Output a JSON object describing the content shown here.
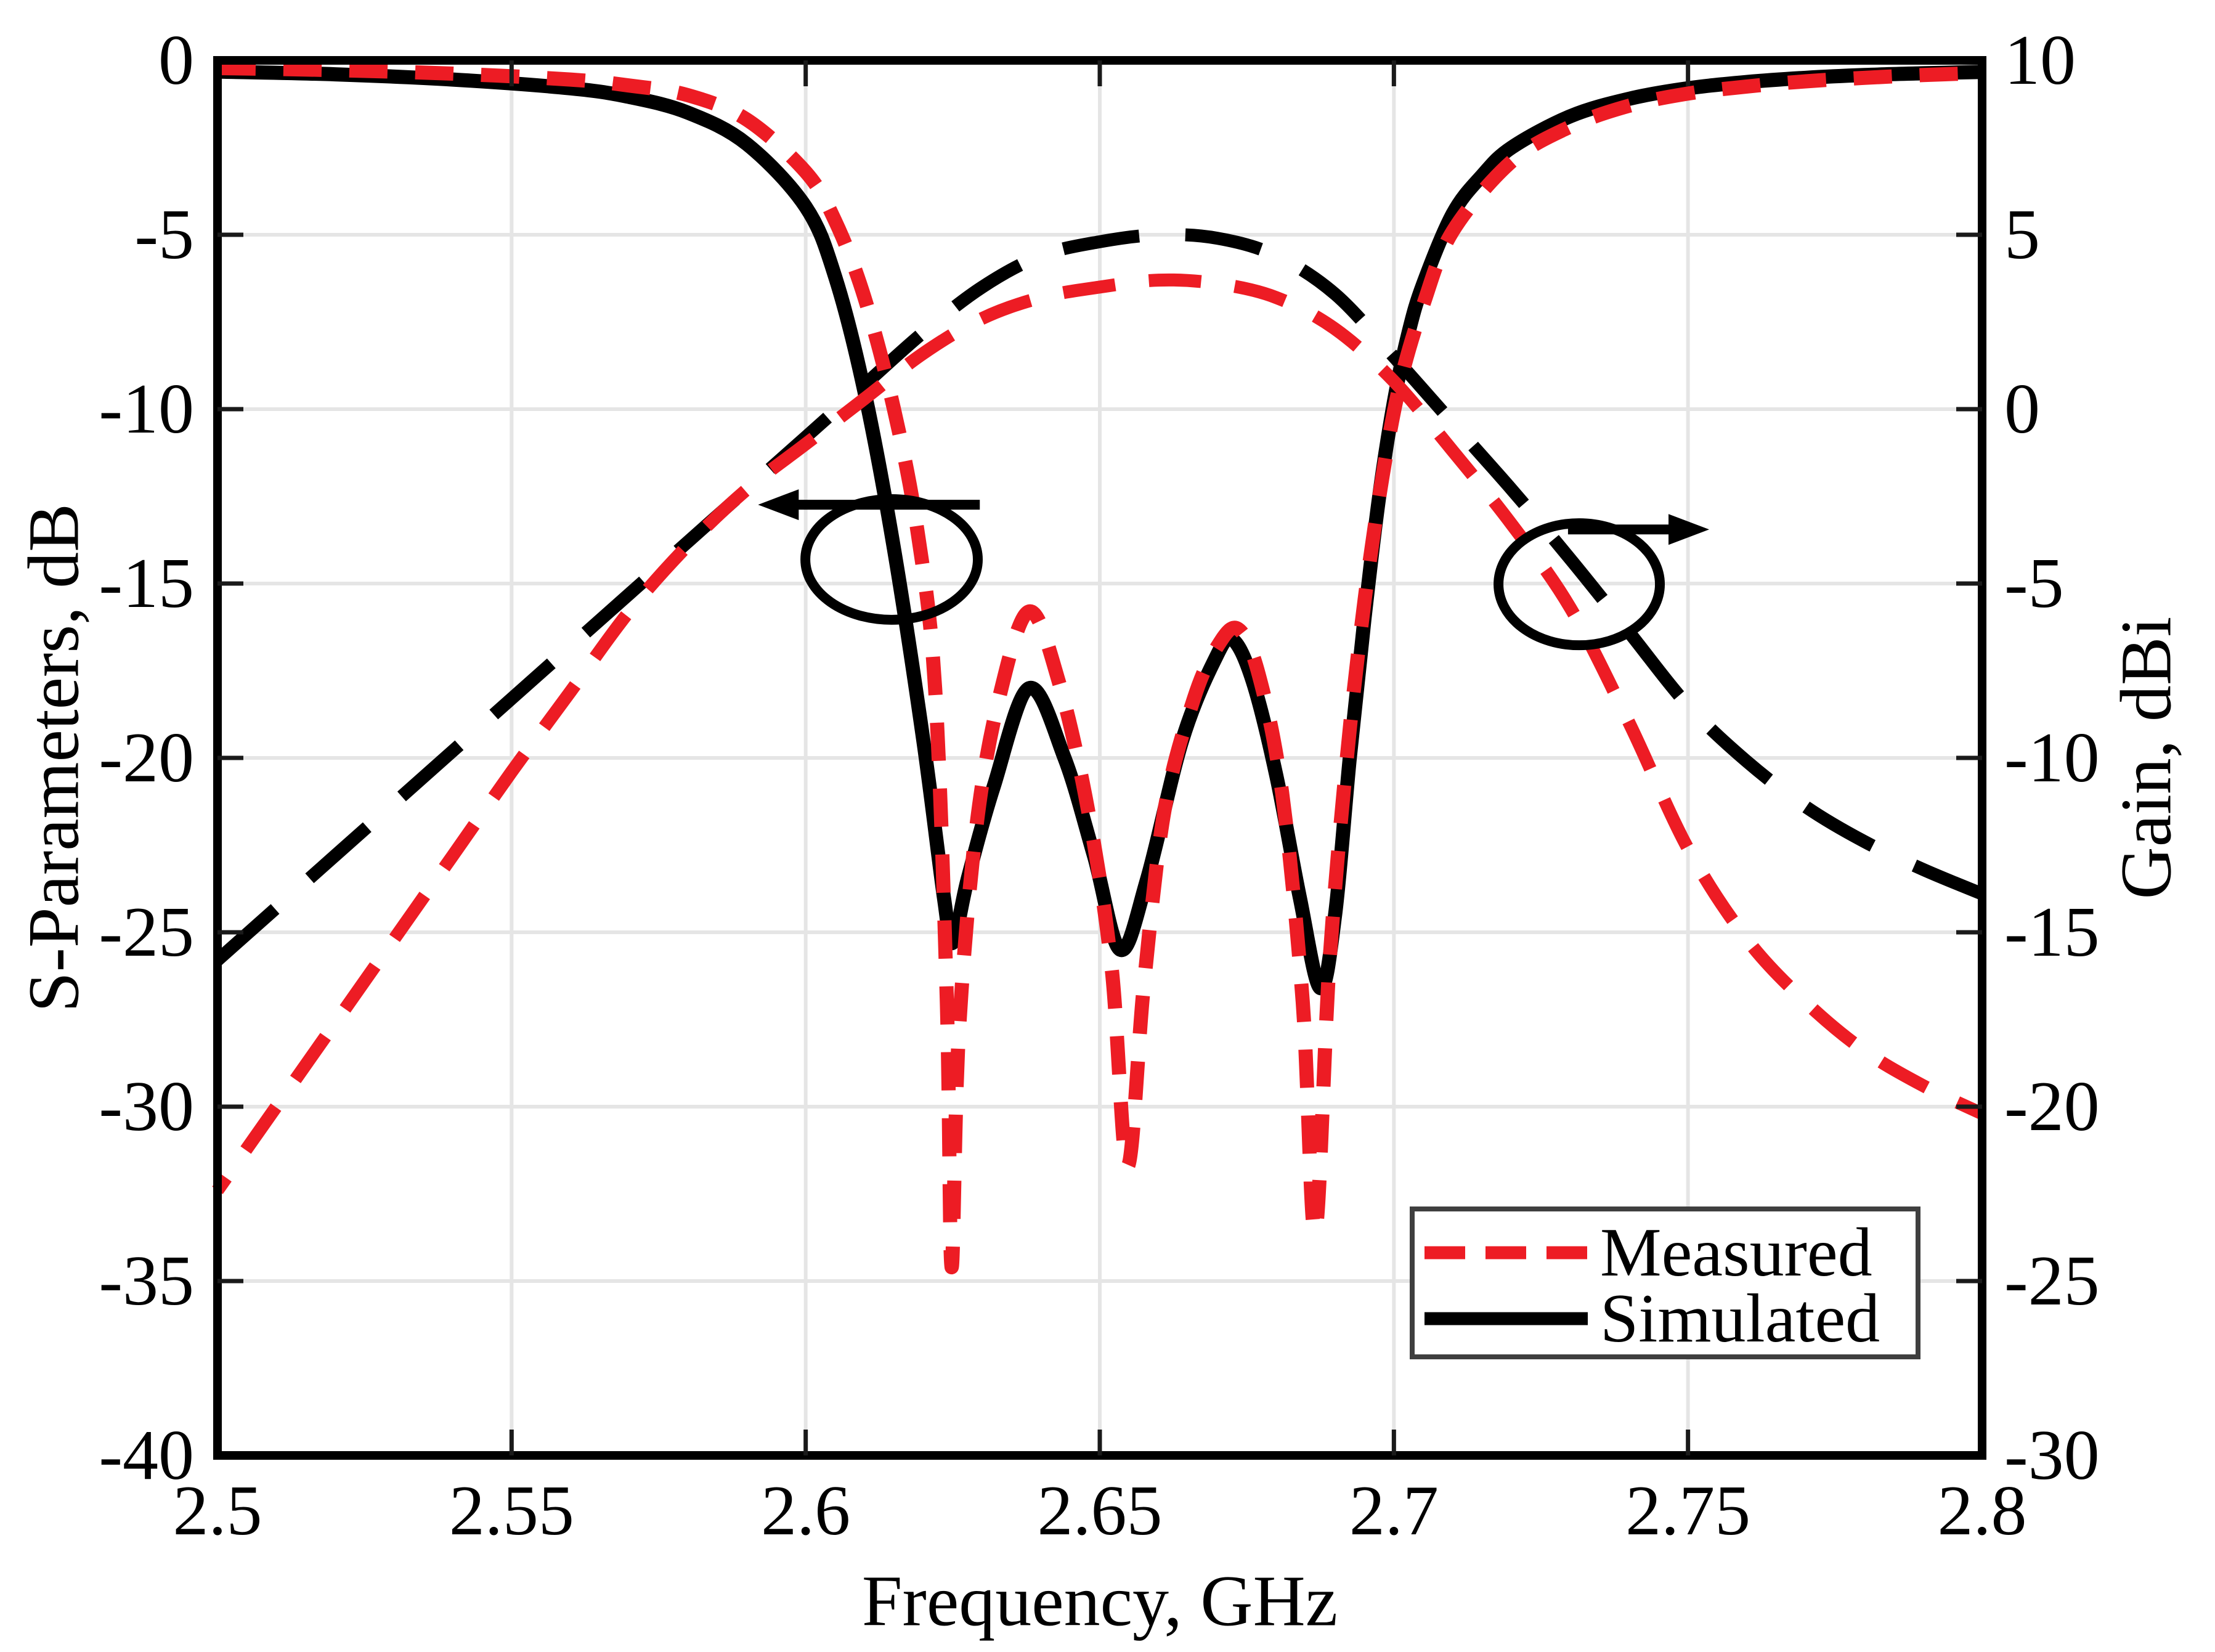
{
  "chart_data": {
    "type": "line",
    "title": "",
    "xlabel": "Frequency, GHz",
    "ylabel_left": "S-Parameters, dB",
    "ylabel_right": "Gain, dBi",
    "xlim": [
      2.5,
      2.8
    ],
    "ylim_left": [
      -40,
      0
    ],
    "ylim_right": [
      -30,
      10
    ],
    "grid": true,
    "xticks": [
      2.5,
      2.55,
      2.6,
      2.65,
      2.7,
      2.75,
      2.8
    ],
    "xtick_labels": [
      "2.5",
      "2.55",
      "2.6",
      "2.65",
      "2.7",
      "2.75",
      "2.8"
    ],
    "yticks_left": [
      0,
      -5,
      -10,
      -15,
      -20,
      -25,
      -30,
      -35,
      -40
    ],
    "ytick_labels_left": [
      "0",
      "-5",
      "-10",
      "-15",
      "-20",
      "-25",
      "-30",
      "-35",
      "-40"
    ],
    "yticks_right": [
      10,
      5,
      0,
      -5,
      -10,
      -15,
      -20,
      -25,
      -30
    ],
    "ytick_labels_right": [
      "10",
      "5",
      "0",
      "-5",
      "-10",
      "-15",
      "-20",
      "-25",
      "-30"
    ],
    "colors": {
      "measured": "#ED1C24",
      "simulated": "#000000",
      "grid": "#E5E5E5",
      "tick": "#1A1A1A",
      "legend_border": "#3F3F3F"
    },
    "legend": {
      "position": "lower-right",
      "entries": [
        {
          "label": "Measured",
          "color": "#ED1C24",
          "style": "dashed"
        },
        {
          "label": "Simulated",
          "color": "#000000",
          "style": "solid"
        }
      ]
    },
    "series": [
      {
        "name": "s-parameters-simulated",
        "legend": "Simulated",
        "axis": "left",
        "color": "#000000",
        "style": "solid",
        "width": 23,
        "dash": null,
        "points": [
          [
            2.5,
            -0.32
          ],
          [
            2.52,
            -0.4
          ],
          [
            2.54,
            -0.55
          ],
          [
            2.56,
            -0.8
          ],
          [
            2.57,
            -1.05
          ],
          [
            2.58,
            -1.5
          ],
          [
            2.59,
            -2.4
          ],
          [
            2.6,
            -4.2
          ],
          [
            2.605,
            -6.2
          ],
          [
            2.61,
            -9.5
          ],
          [
            2.615,
            -14.0
          ],
          [
            2.62,
            -19.5
          ],
          [
            2.6235,
            -24.0
          ],
          [
            2.625,
            -25.3
          ],
          [
            2.6275,
            -23.5
          ],
          [
            2.632,
            -20.8
          ],
          [
            2.638,
            -18.0
          ],
          [
            2.644,
            -20.0
          ],
          [
            2.649,
            -22.8
          ],
          [
            2.6535,
            -25.5
          ],
          [
            2.658,
            -23.5
          ],
          [
            2.664,
            -19.5
          ],
          [
            2.6695,
            -17.2
          ],
          [
            2.6725,
            -16.6
          ],
          [
            2.676,
            -17.8
          ],
          [
            2.68,
            -20.5
          ],
          [
            2.684,
            -24.0
          ],
          [
            2.6875,
            -26.6
          ],
          [
            2.69,
            -24.5
          ],
          [
            2.6925,
            -20.0
          ],
          [
            2.695,
            -16.0
          ],
          [
            2.6975,
            -12.5
          ],
          [
            2.7,
            -9.8
          ],
          [
            2.7025,
            -7.8
          ],
          [
            2.705,
            -6.4
          ],
          [
            2.71,
            -4.4
          ],
          [
            2.715,
            -3.3
          ],
          [
            2.72,
            -2.5
          ],
          [
            2.73,
            -1.6
          ],
          [
            2.74,
            -1.1
          ],
          [
            2.75,
            -0.8
          ],
          [
            2.76,
            -0.62
          ],
          [
            2.77,
            -0.5
          ],
          [
            2.78,
            -0.42
          ],
          [
            2.79,
            -0.37
          ],
          [
            2.8,
            -0.33
          ]
        ]
      },
      {
        "name": "s-parameters-measured",
        "legend": "Measured",
        "axis": "left",
        "color": "#ED1C24",
        "style": "dashed",
        "width": 23,
        "dash": [
          62,
          45
        ],
        "points": [
          [
            2.5,
            -0.22
          ],
          [
            2.52,
            -0.28
          ],
          [
            2.54,
            -0.38
          ],
          [
            2.56,
            -0.55
          ],
          [
            2.57,
            -0.72
          ],
          [
            2.58,
            -1.0
          ],
          [
            2.59,
            -1.7
          ],
          [
            2.6,
            -3.2
          ],
          [
            2.605,
            -4.6
          ],
          [
            2.61,
            -6.8
          ],
          [
            2.615,
            -10.0
          ],
          [
            2.619,
            -13.5
          ],
          [
            2.622,
            -18.0
          ],
          [
            2.624,
            -27.0
          ],
          [
            2.6248,
            -34.6
          ],
          [
            2.626,
            -28.0
          ],
          [
            2.629,
            -22.0
          ],
          [
            2.633,
            -18.2
          ],
          [
            2.638,
            -15.8
          ],
          [
            2.643,
            -17.8
          ],
          [
            2.648,
            -21.5
          ],
          [
            2.652,
            -26.0
          ],
          [
            2.6547,
            -31.7
          ],
          [
            2.6575,
            -26.5
          ],
          [
            2.661,
            -21.5
          ],
          [
            2.666,
            -18.3
          ],
          [
            2.67,
            -16.8
          ],
          [
            2.6735,
            -16.3
          ],
          [
            2.677,
            -17.6
          ],
          [
            2.681,
            -21.0
          ],
          [
            2.6845,
            -27.0
          ],
          [
            2.6866,
            -33.6
          ],
          [
            2.689,
            -26.0
          ],
          [
            2.692,
            -20.0
          ],
          [
            2.695,
            -15.5
          ],
          [
            2.698,
            -12.0
          ],
          [
            2.701,
            -9.3
          ],
          [
            2.705,
            -7.0
          ],
          [
            2.71,
            -4.9
          ],
          [
            2.72,
            -2.9
          ],
          [
            2.73,
            -1.9
          ],
          [
            2.74,
            -1.3
          ],
          [
            2.75,
            -0.95
          ],
          [
            2.76,
            -0.75
          ],
          [
            2.77,
            -0.6
          ],
          [
            2.78,
            -0.5
          ],
          [
            2.79,
            -0.42
          ],
          [
            2.8,
            -0.36
          ]
        ]
      },
      {
        "name": "gain-simulated",
        "legend": "Simulated",
        "axis": "right",
        "color": "#000000",
        "style": "dashed",
        "width": 21,
        "dash": [
          125,
          75
        ],
        "points": [
          [
            2.5,
            -15.8
          ],
          [
            2.51,
            -14.3
          ],
          [
            2.52,
            -12.8
          ],
          [
            2.53,
            -11.3
          ],
          [
            2.54,
            -9.8
          ],
          [
            2.55,
            -8.3
          ],
          [
            2.56,
            -6.8
          ],
          [
            2.57,
            -5.3
          ],
          [
            2.58,
            -3.8
          ],
          [
            2.59,
            -2.3
          ],
          [
            2.6,
            -0.8
          ],
          [
            2.61,
            0.7
          ],
          [
            2.62,
            2.2
          ],
          [
            2.63,
            3.5
          ],
          [
            2.64,
            4.4
          ],
          [
            2.65,
            4.8
          ],
          [
            2.66,
            5.0
          ],
          [
            2.67,
            4.9
          ],
          [
            2.68,
            4.4
          ],
          [
            2.69,
            3.3
          ],
          [
            2.7,
            1.5
          ],
          [
            2.71,
            -0.4
          ],
          [
            2.72,
            -2.3
          ],
          [
            2.73,
            -4.3
          ],
          [
            2.74,
            -6.4
          ],
          [
            2.75,
            -8.5
          ],
          [
            2.76,
            -10.1
          ],
          [
            2.77,
            -11.4
          ],
          [
            2.78,
            -12.4
          ],
          [
            2.79,
            -13.2
          ],
          [
            2.8,
            -13.9
          ]
        ]
      },
      {
        "name": "gain-measured",
        "legend": "Measured",
        "axis": "right",
        "color": "#ED1C24",
        "style": "dashed",
        "width": 21,
        "dash": [
          85,
          55
        ],
        "points": [
          [
            2.5,
            -22.4
          ],
          [
            2.51,
            -20.0
          ],
          [
            2.52,
            -17.6
          ],
          [
            2.53,
            -15.2
          ],
          [
            2.54,
            -12.8
          ],
          [
            2.55,
            -10.4
          ],
          [
            2.56,
            -8.1
          ],
          [
            2.57,
            -5.8
          ],
          [
            2.58,
            -3.9
          ],
          [
            2.59,
            -2.3
          ],
          [
            2.6,
            -1.0
          ],
          [
            2.61,
            0.3
          ],
          [
            2.62,
            1.6
          ],
          [
            2.63,
            2.6
          ],
          [
            2.64,
            3.2
          ],
          [
            2.65,
            3.5
          ],
          [
            2.66,
            3.7
          ],
          [
            2.67,
            3.6
          ],
          [
            2.68,
            3.2
          ],
          [
            2.69,
            2.3
          ],
          [
            2.7,
            0.8
          ],
          [
            2.71,
            -1.2
          ],
          [
            2.72,
            -3.3
          ],
          [
            2.73,
            -5.7
          ],
          [
            2.74,
            -9.0
          ],
          [
            2.75,
            -12.6
          ],
          [
            2.76,
            -15.2
          ],
          [
            2.77,
            -17.0
          ],
          [
            2.78,
            -18.4
          ],
          [
            2.79,
            -19.4
          ],
          [
            2.8,
            -20.2
          ]
        ]
      }
    ],
    "annotations": [
      {
        "name": "s-parameters-axis-pointer",
        "ellipse": {
          "x": 2.6146,
          "y": -14.31,
          "rx": 0.01466,
          "ry": 1.73
        },
        "arrow": {
          "y": -12.74,
          "x_from": 2.6296,
          "x_to": 2.5919,
          "dir": "left"
        }
      },
      {
        "name": "gain-axis-pointer",
        "ellipse": {
          "x": 2.7315,
          "y": -15.02,
          "rx": 0.01372,
          "ry": 1.75
        },
        "arrow": {
          "y": -13.45,
          "x_from": 2.7296,
          "x_to": 2.7536,
          "dir": "right"
        }
      }
    ]
  }
}
